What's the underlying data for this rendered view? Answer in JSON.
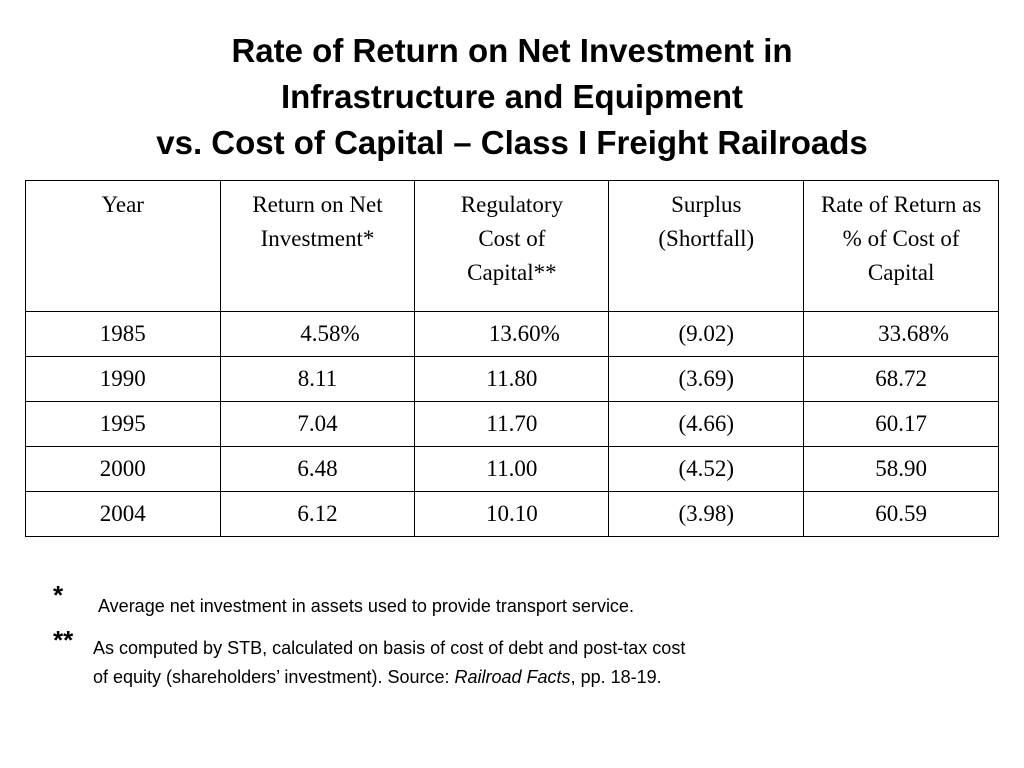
{
  "title": {
    "line1": "Rate of Return on Net Investment in",
    "line2": "Infrastructure and Equipment",
    "line3": "vs. Cost of Capital – Class I Freight Railroads"
  },
  "table": {
    "headers": [
      "Year",
      "Return on Net Investment*",
      "Regulatory Cost of Capital**",
      "Surplus (Shortfall)",
      "Rate of Return as % of Cost of Capital"
    ],
    "rows": [
      [
        "1985",
        "4.58%",
        "13.60%",
        "(9.02)",
        "33.68%"
      ],
      [
        "1990",
        "8.11",
        "11.80",
        "(3.69)",
        "68.72"
      ],
      [
        "1995",
        "7.04",
        "11.70",
        "(4.66)",
        "60.17"
      ],
      [
        "2000",
        "6.48",
        "11.00",
        "(4.52)",
        "58.90"
      ],
      [
        "2004",
        "6.12",
        "10.10",
        "(3.98)",
        "60.59"
      ]
    ]
  },
  "footnotes": {
    "note1_marker": "*",
    "note1_text": "Average net investment in assets used to provide transport service.",
    "note2_marker": "**",
    "note2_line1": "As computed by STB, calculated on basis of cost of debt and post-tax cost",
    "note2_line2_prefix": "of equity (shareholders’ investment). Source: ",
    "note2_source": "Railroad Facts",
    "note2_line2_suffix": ", pp. 18-19."
  }
}
